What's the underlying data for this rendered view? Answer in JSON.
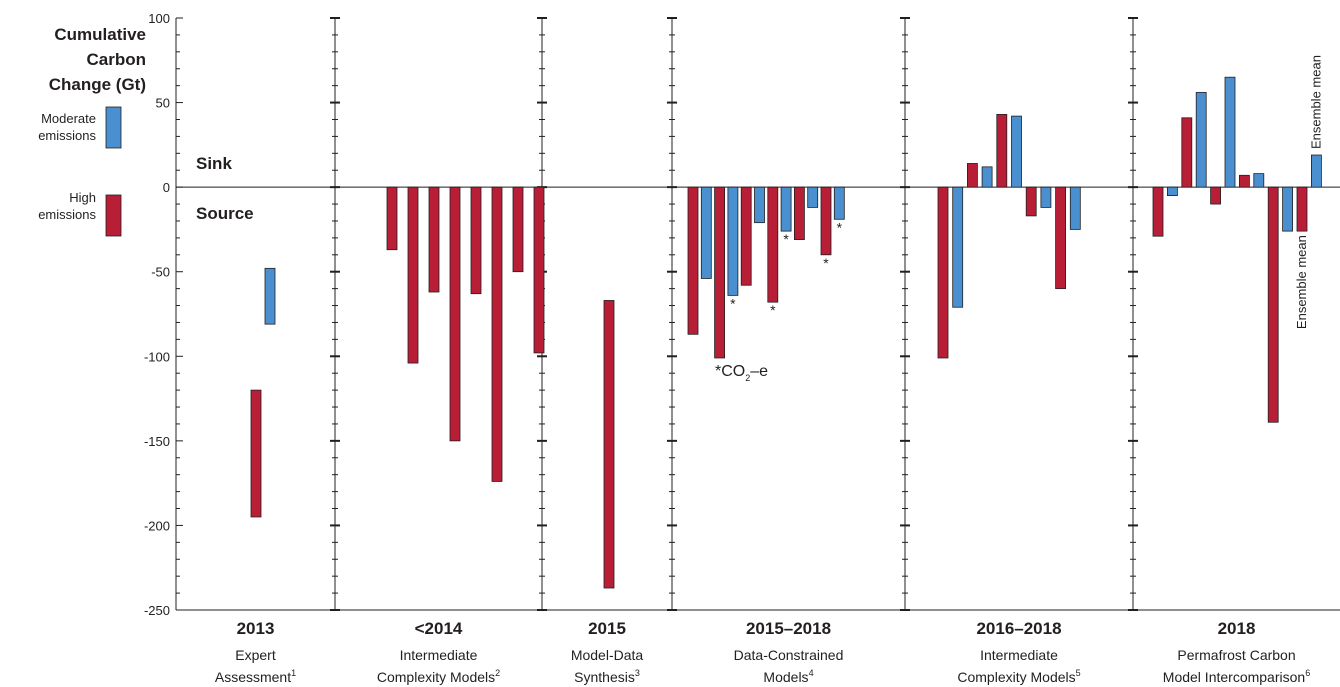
{
  "colors": {
    "moderate": "#4a8fd0",
    "high": "#b81f37",
    "axis": "#231f20"
  },
  "labels": {
    "ylabel": [
      "Cumulative",
      "Carbon",
      "Change (Gt)"
    ],
    "sink": "Sink",
    "source": "Source",
    "co2_note": "*CO",
    "co2_sub": "2",
    "co2_tail": "–e",
    "star": "*"
  },
  "chart_data": {
    "type": "bar",
    "ylabel": "Cumulative Carbon Change (Gt)",
    "ylim": [
      -250,
      100
    ],
    "yticks": [
      100,
      50,
      0,
      -50,
      -100,
      -150,
      -200,
      -250
    ],
    "legend": [
      {
        "key": "moderate",
        "text": [
          "Moderate",
          "emissions"
        ]
      },
      {
        "key": "high",
        "text": [
          "High",
          "emissions"
        ]
      }
    ],
    "groups": [
      {
        "year": "2013",
        "label": [
          "Expert",
          "Assessment"
        ],
        "footnote": "1",
        "bars": [
          {
            "type": "high",
            "low": -195,
            "high": -120
          },
          {
            "type": "moderate",
            "low": -81,
            "high": -48
          }
        ]
      },
      {
        "year": "<2014",
        "label": [
          "Intermediate",
          "Complexity Models"
        ],
        "footnote": "2",
        "bars": [
          {
            "type": "high",
            "value": -37
          },
          {
            "type": "high",
            "value": -104
          },
          {
            "type": "high",
            "value": -62
          },
          {
            "type": "high",
            "value": -150
          },
          {
            "type": "high",
            "value": -63
          },
          {
            "type": "high",
            "value": -174
          },
          {
            "type": "high",
            "value": -50
          },
          {
            "type": "high",
            "value": -98
          }
        ]
      },
      {
        "year": "2015",
        "label": [
          "Model-Data",
          "Synthesis"
        ],
        "footnote": "3",
        "bars": [
          {
            "type": "high",
            "low": -237,
            "high": -67
          }
        ]
      },
      {
        "year": "2015–2018",
        "label": [
          "Data-Constrained",
          "Models"
        ],
        "footnote": "4",
        "bars": [
          {
            "type": "high",
            "value": -87
          },
          {
            "type": "moderate",
            "value": -54
          },
          {
            "type": "high",
            "value": -101
          },
          {
            "type": "moderate",
            "value": -64,
            "star": true
          },
          {
            "type": "high",
            "value": -58
          },
          {
            "type": "moderate",
            "value": -21
          },
          {
            "type": "high",
            "value": -68,
            "star": true
          },
          {
            "type": "moderate",
            "value": -26,
            "star": true
          },
          {
            "type": "high",
            "value": -31
          },
          {
            "type": "moderate",
            "value": -12
          },
          {
            "type": "high",
            "value": -40,
            "star": true
          },
          {
            "type": "moderate",
            "value": -19,
            "star": true
          }
        ]
      },
      {
        "year": "2016–2018",
        "label": [
          "Intermediate",
          "Complexity Models"
        ],
        "footnote": "5",
        "bars": [
          {
            "type": "high",
            "value": -101
          },
          {
            "type": "moderate",
            "value": -71
          },
          {
            "type": "high",
            "value": 14
          },
          {
            "type": "moderate",
            "value": 12
          },
          {
            "type": "high",
            "value": 43
          },
          {
            "type": "moderate",
            "value": 42
          },
          {
            "type": "high",
            "value": -17
          },
          {
            "type": "moderate",
            "value": -12
          },
          {
            "type": "high",
            "value": -60
          },
          {
            "type": "moderate",
            "value": -25
          }
        ]
      },
      {
        "year": "2018",
        "label": [
          "Permafrost Carbon",
          "Model Intercomparison"
        ],
        "footnote": "6",
        "bars": [
          {
            "type": "high",
            "value": -29
          },
          {
            "type": "moderate",
            "value": -5
          },
          {
            "type": "high",
            "value": 41
          },
          {
            "type": "moderate",
            "value": 56
          },
          {
            "type": "high",
            "value": -10
          },
          {
            "type": "moderate",
            "value": 65
          },
          {
            "type": "high",
            "value": 7
          },
          {
            "type": "moderate",
            "value": 8
          },
          {
            "type": "high",
            "value": -139
          },
          {
            "type": "moderate",
            "value": -26
          },
          {
            "type": "high",
            "value": -26,
            "note": "Ensemble mean"
          },
          {
            "type": "moderate",
            "value": 19,
            "note": "Ensemble mean"
          }
        ]
      }
    ]
  }
}
